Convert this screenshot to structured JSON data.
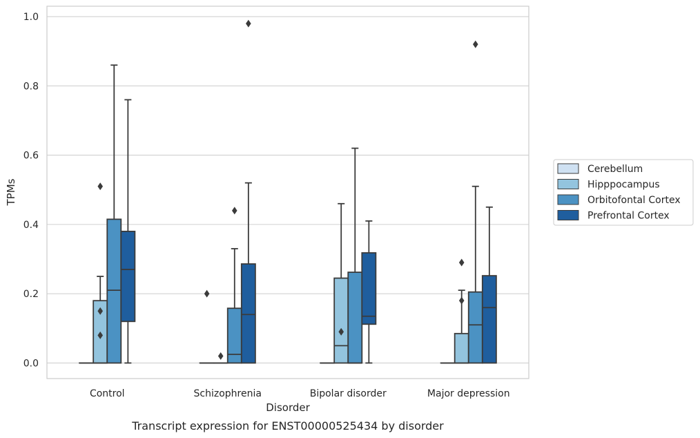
{
  "chart_data": {
    "type": "box",
    "title": "",
    "caption": "Transcript expression for ENST00000525434 by disorder",
    "xlabel": "Disorder",
    "ylabel": "TPMs",
    "ylim": [
      -0.045,
      1.03
    ],
    "yticks": [
      "0.0",
      "0.2",
      "0.4",
      "0.6",
      "0.8",
      "1.0"
    ],
    "grid": true,
    "legend_position": "right",
    "categories": [
      "Control",
      "Schizophrenia",
      "Bipolar disorder",
      "Major depression"
    ],
    "series": [
      {
        "name": "Cerebellum",
        "color": "#cfe1f2",
        "boxes": [
          {
            "whisker_low": 0,
            "q1": 0,
            "median": 0,
            "q3": 0,
            "whisker_high": 0,
            "outliers": []
          },
          {
            "whisker_low": 0,
            "q1": 0,
            "median": 0,
            "q3": 0,
            "whisker_high": 0,
            "outliers": [
              0.2
            ]
          },
          {
            "whisker_low": 0,
            "q1": 0,
            "median": 0,
            "q3": 0,
            "whisker_high": 0,
            "outliers": []
          },
          {
            "whisker_low": 0,
            "q1": 0,
            "median": 0,
            "q3": 0,
            "whisker_high": 0,
            "outliers": []
          }
        ]
      },
      {
        "name": "Hipppocampus",
        "color": "#93c4de",
        "boxes": [
          {
            "whisker_low": 0,
            "q1": 0,
            "median": 0,
            "q3": 0.18,
            "whisker_high": 0.25,
            "outliers": [
              0.08,
              0.15,
              0.51
            ]
          },
          {
            "whisker_low": 0,
            "q1": 0,
            "median": 0,
            "q3": 0,
            "whisker_high": 0,
            "outliers": [
              0.02
            ]
          },
          {
            "whisker_low": 0,
            "q1": 0,
            "median": 0.05,
            "q3": 0.245,
            "whisker_high": 0.46,
            "outliers": [
              0.09
            ]
          },
          {
            "whisker_low": 0,
            "q1": 0,
            "median": 0,
            "q3": 0.085,
            "whisker_high": 0.21,
            "outliers": [
              0.18,
              0.29
            ]
          }
        ]
      },
      {
        "name": "Orbitofontal Cortex",
        "color": "#4b92c3",
        "boxes": [
          {
            "whisker_low": 0,
            "q1": 0,
            "median": 0.21,
            "q3": 0.415,
            "whisker_high": 0.86,
            "outliers": []
          },
          {
            "whisker_low": 0,
            "q1": 0,
            "median": 0.025,
            "q3": 0.158,
            "whisker_high": 0.33,
            "outliers": [
              0.44
            ]
          },
          {
            "whisker_low": 0,
            "q1": 0,
            "median": 0,
            "q3": 0.262,
            "whisker_high": 0.62,
            "outliers": []
          },
          {
            "whisker_low": 0,
            "q1": 0,
            "median": 0.11,
            "q3": 0.205,
            "whisker_high": 0.51,
            "outliers": [
              0.92
            ]
          }
        ]
      },
      {
        "name": "Prefrontal Cortex",
        "color": "#1f5e9e",
        "boxes": [
          {
            "whisker_low": 0,
            "q1": 0.12,
            "median": 0.27,
            "q3": 0.38,
            "whisker_high": 0.76,
            "outliers": []
          },
          {
            "whisker_low": 0,
            "q1": 0,
            "median": 0.14,
            "q3": 0.286,
            "whisker_high": 0.52,
            "outliers": [
              0.98
            ]
          },
          {
            "whisker_low": 0,
            "q1": 0.112,
            "median": 0.135,
            "q3": 0.318,
            "whisker_high": 0.41,
            "outliers": []
          },
          {
            "whisker_low": 0,
            "q1": 0,
            "median": 0.16,
            "q3": 0.252,
            "whisker_high": 0.45,
            "outliers": []
          }
        ]
      }
    ]
  }
}
